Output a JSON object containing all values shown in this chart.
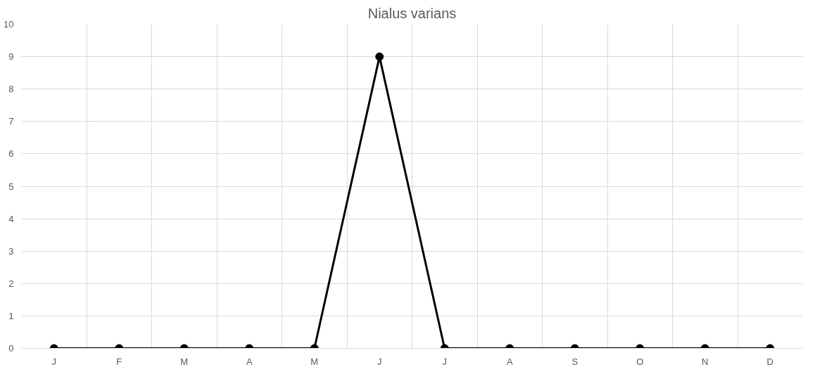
{
  "chart_data": {
    "type": "line",
    "title": "Nialus varians",
    "categories": [
      "J",
      "F",
      "M",
      "A",
      "M",
      "J",
      "J",
      "A",
      "S",
      "O",
      "N",
      "D"
    ],
    "series": [
      {
        "color": "#000000",
        "values": [
          0,
          0,
          0,
          0,
          0,
          9,
          0,
          0,
          0,
          0,
          0,
          0
        ]
      }
    ],
    "ylim": [
      0,
      10
    ],
    "yticks": [
      0,
      1,
      2,
      3,
      4,
      5,
      6,
      7,
      8,
      9,
      10
    ],
    "grid": true,
    "marker": "circle",
    "line_style": "solid"
  }
}
